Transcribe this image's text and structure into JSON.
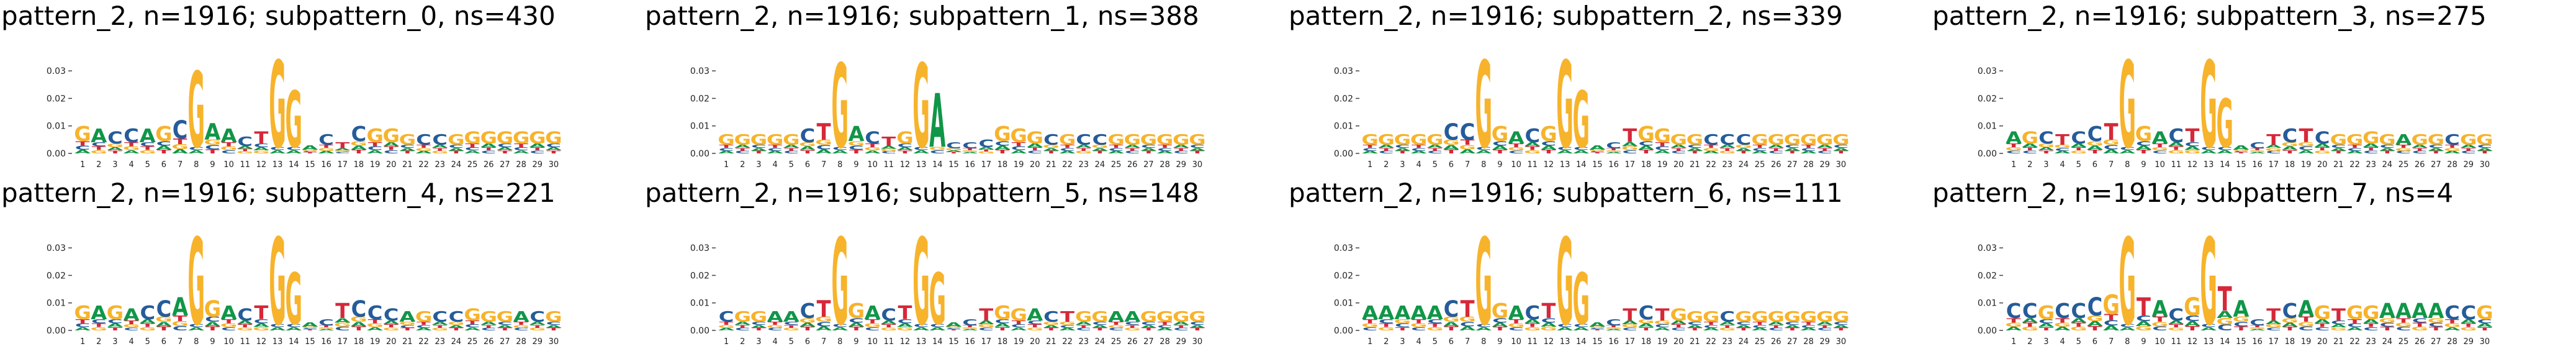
{
  "figure": {
    "pattern_label": "pattern_2, n=1916",
    "positions": [
      1,
      2,
      3,
      4,
      5,
      6,
      7,
      8,
      9,
      10,
      11,
      12,
      13,
      14,
      15,
      16,
      17,
      18,
      19,
      20,
      21,
      22,
      23,
      24,
      25,
      26,
      27,
      28,
      29,
      30
    ],
    "y_ticks": [
      {
        "value": 0.0,
        "label": "0.00"
      },
      {
        "value": 0.01,
        "label": "0.01"
      },
      {
        "value": 0.02,
        "label": "0.02"
      },
      {
        "value": 0.03,
        "label": "0.03"
      }
    ],
    "ylim": [
      0,
      0.035
    ]
  },
  "colors": {
    "A": "#109648",
    "C": "#255c99",
    "G": "#f7b32b",
    "T": "#d62839"
  },
  "chart_data": [
    {
      "type": "sequence-logo",
      "title": "pattern_2, n=1916; subpattern_0, ns=430",
      "grid": false,
      "legend": "none",
      "motif": [
        "G",
        "A",
        "C",
        "C",
        "A",
        "G",
        "C",
        "G",
        "A",
        "A",
        "C",
        "T",
        "G",
        "G",
        "A",
        "C",
        "T",
        "C",
        "G",
        "G",
        "G",
        "C",
        "C",
        "G",
        "G",
        "G",
        "G",
        "G",
        "G",
        "G"
      ],
      "heights": [
        0.01,
        0.009,
        0.008,
        0.009,
        0.009,
        0.01,
        0.012,
        0.03,
        0.011,
        0.009,
        0.006,
        0.008,
        0.034,
        0.023,
        0.003,
        0.007,
        0.004,
        0.01,
        0.009,
        0.009,
        0.007,
        0.007,
        0.007,
        0.007,
        0.008,
        0.008,
        0.008,
        0.008,
        0.008,
        0.008
      ]
    },
    {
      "type": "sequence-logo",
      "title": "pattern_2, n=1916; subpattern_1, ns=388",
      "grid": false,
      "legend": "none",
      "motif": [
        "G",
        "G",
        "G",
        "G",
        "G",
        "C",
        "T",
        "G",
        "A",
        "C",
        "T",
        "G",
        "G",
        "A",
        "C",
        "C",
        "C",
        "G",
        "G",
        "G",
        "C",
        "G",
        "C",
        "C",
        "G",
        "G",
        "G",
        "G",
        "G",
        "G"
      ],
      "heights": [
        0.007,
        0.007,
        0.007,
        0.007,
        0.007,
        0.009,
        0.011,
        0.033,
        0.01,
        0.008,
        0.006,
        0.008,
        0.033,
        0.022,
        0.004,
        0.004,
        0.005,
        0.01,
        0.009,
        0.008,
        0.007,
        0.007,
        0.007,
        0.007,
        0.007,
        0.007,
        0.007,
        0.007,
        0.007,
        0.007
      ]
    },
    {
      "type": "sequence-logo",
      "title": "pattern_2, n=1916; subpattern_2, ns=339",
      "grid": false,
      "legend": "none",
      "motif": [
        "G",
        "G",
        "G",
        "G",
        "G",
        "C",
        "C",
        "G",
        "G",
        "A",
        "C",
        "G",
        "G",
        "G",
        "A",
        "C",
        "T",
        "G",
        "G",
        "G",
        "G",
        "C",
        "C",
        "C",
        "G",
        "G",
        "G",
        "G",
        "G",
        "G"
      ],
      "heights": [
        0.007,
        0.007,
        0.007,
        0.007,
        0.007,
        0.011,
        0.011,
        0.034,
        0.01,
        0.008,
        0.009,
        0.01,
        0.034,
        0.023,
        0.003,
        0.004,
        0.009,
        0.01,
        0.009,
        0.007,
        0.007,
        0.007,
        0.007,
        0.007,
        0.007,
        0.007,
        0.007,
        0.007,
        0.007,
        0.007
      ]
    },
    {
      "type": "sequence-logo",
      "title": "pattern_2, n=1916; subpattern_3, ns=275",
      "grid": false,
      "legend": "none",
      "motif": [
        "A",
        "G",
        "C",
        "T",
        "C",
        "C",
        "T",
        "G",
        "G",
        "A",
        "C",
        "T",
        "G",
        "G",
        "A",
        "C",
        "T",
        "C",
        "T",
        "C",
        "G",
        "G",
        "G",
        "G",
        "A",
        "G",
        "G",
        "C",
        "G",
        "G"
      ],
      "heights": [
        0.008,
        0.008,
        0.008,
        0.007,
        0.008,
        0.01,
        0.011,
        0.034,
        0.01,
        0.008,
        0.009,
        0.009,
        0.034,
        0.02,
        0.003,
        0.004,
        0.007,
        0.009,
        0.009,
        0.008,
        0.007,
        0.007,
        0.008,
        0.007,
        0.007,
        0.007,
        0.007,
        0.007,
        0.007,
        0.007
      ]
    },
    {
      "type": "sequence-logo",
      "title": "pattern_2, n=1916; subpattern_4, ns=221",
      "grid": false,
      "legend": "none",
      "motif": [
        "G",
        "A",
        "G",
        "A",
        "C",
        "C",
        "A",
        "G",
        "G",
        "A",
        "C",
        "T",
        "G",
        "G",
        "A",
        "C",
        "T",
        "C",
        "C",
        "C",
        "A",
        "G",
        "C",
        "C",
        "G",
        "G",
        "G",
        "A",
        "C",
        "G"
      ],
      "heights": [
        0.009,
        0.009,
        0.009,
        0.008,
        0.009,
        0.011,
        0.012,
        0.034,
        0.011,
        0.009,
        0.008,
        0.009,
        0.034,
        0.021,
        0.003,
        0.004,
        0.01,
        0.011,
        0.009,
        0.008,
        0.007,
        0.007,
        0.007,
        0.007,
        0.008,
        0.007,
        0.007,
        0.007,
        0.007,
        0.007
      ]
    },
    {
      "type": "sequence-logo",
      "title": "pattern_2, n=1916; subpattern_5, ns=148",
      "grid": false,
      "legend": "none",
      "motif": [
        "C",
        "G",
        "G",
        "A",
        "A",
        "C",
        "T",
        "G",
        "G",
        "A",
        "C",
        "T",
        "G",
        "G",
        "A",
        "C",
        "T",
        "G",
        "G",
        "A",
        "C",
        "T",
        "G",
        "G",
        "A",
        "A",
        "G",
        "G",
        "G",
        "G"
      ],
      "heights": [
        0.007,
        0.007,
        0.007,
        0.007,
        0.007,
        0.01,
        0.011,
        0.034,
        0.01,
        0.009,
        0.008,
        0.009,
        0.034,
        0.021,
        0.003,
        0.004,
        0.008,
        0.009,
        0.008,
        0.008,
        0.007,
        0.007,
        0.007,
        0.007,
        0.007,
        0.007,
        0.007,
        0.007,
        0.007,
        0.007
      ]
    },
    {
      "type": "sequence-logo",
      "title": "pattern_2, n=1916; subpattern_6, ns=111",
      "grid": false,
      "legend": "none",
      "motif": [
        "A",
        "A",
        "A",
        "A",
        "A",
        "C",
        "T",
        "G",
        "G",
        "A",
        "C",
        "T",
        "G",
        "G",
        "A",
        "C",
        "T",
        "C",
        "T",
        "G",
        "G",
        "G",
        "C",
        "G",
        "G",
        "G",
        "G",
        "G",
        "G",
        "G"
      ],
      "heights": [
        0.009,
        0.009,
        0.009,
        0.009,
        0.009,
        0.011,
        0.011,
        0.034,
        0.01,
        0.009,
        0.009,
        0.01,
        0.034,
        0.021,
        0.003,
        0.004,
        0.008,
        0.009,
        0.008,
        0.008,
        0.007,
        0.007,
        0.007,
        0.007,
        0.007,
        0.007,
        0.007,
        0.007,
        0.007,
        0.007
      ]
    },
    {
      "type": "sequence-logo",
      "title": "pattern_2, n=1916; subpattern_7, ns=4",
      "grid": false,
      "legend": "none",
      "motif": [
        "C",
        "C",
        "G",
        "C",
        "C",
        "C",
        "G",
        "G",
        "T",
        "A",
        "C",
        "G",
        "G",
        "T",
        "A",
        "C",
        "T",
        "C",
        "A",
        "G",
        "T",
        "G",
        "G",
        "A",
        "A",
        "A",
        "A",
        "C",
        "C",
        "G"
      ],
      "heights": [
        0.01,
        0.01,
        0.009,
        0.01,
        0.01,
        0.012,
        0.013,
        0.034,
        0.012,
        0.011,
        0.008,
        0.012,
        0.034,
        0.016,
        0.011,
        0.004,
        0.008,
        0.01,
        0.011,
        0.009,
        0.008,
        0.009,
        0.009,
        0.01,
        0.01,
        0.01,
        0.01,
        0.009,
        0.009,
        0.009
      ]
    }
  ]
}
